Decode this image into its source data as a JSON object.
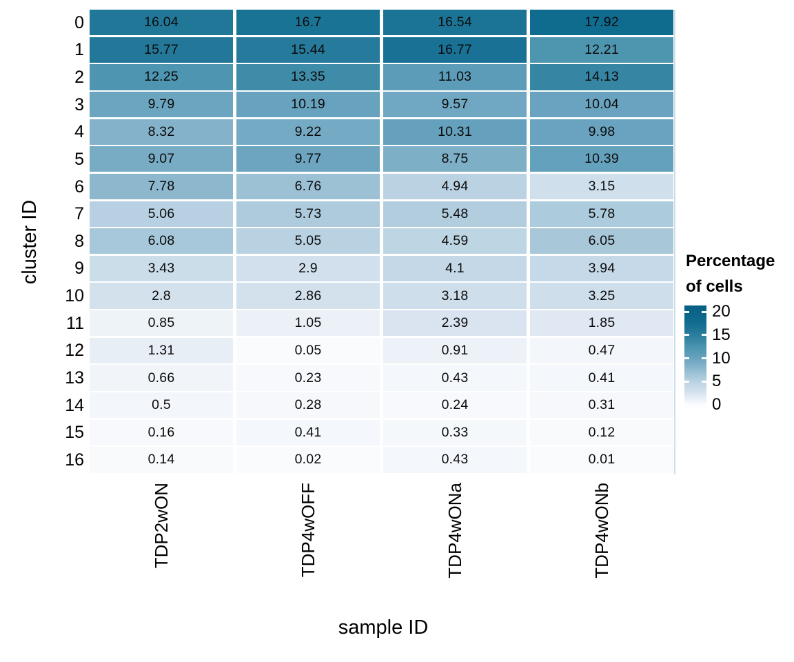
{
  "chart_data": {
    "type": "heatmap",
    "xlabel": "sample ID",
    "ylabel": "cluster ID",
    "categories_x": [
      "TDP2wON",
      "TDP4wOFF",
      "TDP4wONa",
      "TDP4wONb"
    ],
    "categories_y": [
      "0",
      "1",
      "2",
      "3",
      "4",
      "5",
      "6",
      "7",
      "8",
      "9",
      "10",
      "11",
      "12",
      "13",
      "14",
      "15",
      "16"
    ],
    "values": [
      [
        16.04,
        16.7,
        16.54,
        17.92
      ],
      [
        15.77,
        15.44,
        16.77,
        12.21
      ],
      [
        12.25,
        13.35,
        11.03,
        14.13
      ],
      [
        9.79,
        10.19,
        9.57,
        10.04
      ],
      [
        8.32,
        9.22,
        10.31,
        9.98
      ],
      [
        9.07,
        9.77,
        8.75,
        10.39
      ],
      [
        7.78,
        6.76,
        4.94,
        3.15
      ],
      [
        5.06,
        5.73,
        5.48,
        5.78
      ],
      [
        6.08,
        5.05,
        4.59,
        6.05
      ],
      [
        3.43,
        2.9,
        4.1,
        3.94
      ],
      [
        2.8,
        2.86,
        3.18,
        3.25
      ],
      [
        0.85,
        1.05,
        2.39,
        1.85
      ],
      [
        1.31,
        0.05,
        0.91,
        0.47
      ],
      [
        0.66,
        0.23,
        0.43,
        0.41
      ],
      [
        0.5,
        0.28,
        0.24,
        0.31
      ],
      [
        0.16,
        0.41,
        0.33,
        0.12
      ],
      [
        0.14,
        0.02,
        0.43,
        0.01
      ]
    ],
    "legend": {
      "title_lines": [
        "Percentage",
        "of cells"
      ],
      "ticks": [
        20,
        15,
        10,
        5,
        0
      ],
      "bar_range": [
        -0.8,
        21.4
      ]
    },
    "colormap_stops": [
      {
        "v": -0.8,
        "c": "#FDFEFF"
      },
      {
        "v": 0,
        "c": "#FAFBFD"
      },
      {
        "v": 2.5,
        "c": "#D7E3EF"
      },
      {
        "v": 5,
        "c": "#B9D2E2"
      },
      {
        "v": 7.5,
        "c": "#90BACF"
      },
      {
        "v": 10,
        "c": "#69A3BF"
      },
      {
        "v": 12.5,
        "c": "#4A93AE"
      },
      {
        "v": 15,
        "c": "#2B7D9D"
      },
      {
        "v": 17.5,
        "c": "#116E91"
      },
      {
        "v": 20,
        "c": "#0A6287"
      },
      {
        "v": 21.4,
        "c": "#085F84"
      }
    ],
    "grid": "white-gaps",
    "legend_position": "right",
    "text_color": "#000000"
  }
}
